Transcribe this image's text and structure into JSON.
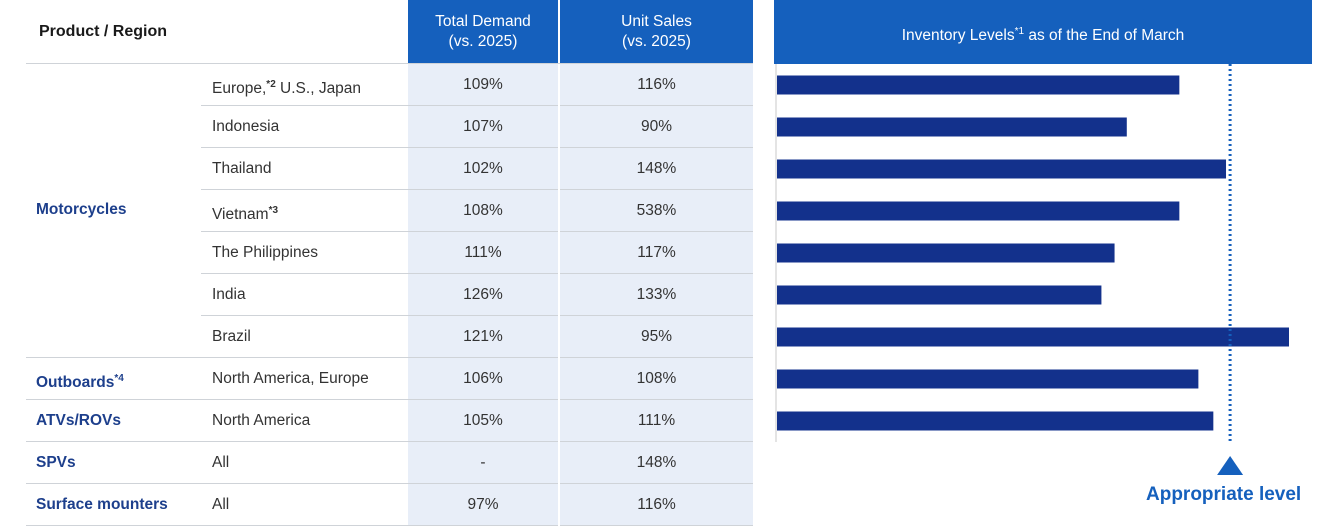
{
  "table": {
    "header": {
      "product_region": "Product / Region",
      "total_demand": [
        "Total Demand",
        "(vs. 2025)"
      ],
      "unit_sales": [
        "Unit Sales",
        "(vs. 2025)"
      ]
    },
    "rows": [
      {
        "category": "",
        "region": "Europe,",
        "region_sup": "*2",
        "region_rest": " U.S., Japan",
        "total_demand": "109%",
        "unit_sales": "116%"
      },
      {
        "category": "",
        "region": "Indonesia",
        "total_demand": "107%",
        "unit_sales": "90%"
      },
      {
        "category": "",
        "region": "Thailand",
        "total_demand": "102%",
        "unit_sales": "148%"
      },
      {
        "category": "",
        "region": "Vietnam",
        "region_sup": "*3",
        "total_demand": "108%",
        "unit_sales": "538%"
      },
      {
        "category": "",
        "region": "The Philippines",
        "total_demand": "111%",
        "unit_sales": "117%"
      },
      {
        "category": "",
        "region": "India",
        "total_demand": "126%",
        "unit_sales": "133%"
      },
      {
        "category": "",
        "region": "Brazil",
        "total_demand": "121%",
        "unit_sales": "95%"
      },
      {
        "category": "Outboards",
        "category_sup": "*4",
        "region": "North America, Europe",
        "total_demand": "106%",
        "unit_sales": "108%"
      },
      {
        "category": "ATVs/ROVs",
        "region": "North America",
        "total_demand": "105%",
        "unit_sales": "111%"
      },
      {
        "category": "SPVs",
        "region": "All",
        "total_demand": "-",
        "unit_sales": "148%"
      },
      {
        "category": "Surface mounters",
        "region": "All",
        "total_demand": "97%",
        "unit_sales": "116%"
      }
    ],
    "motorcycles_label": "Motorcycles"
  },
  "chart_data": {
    "type": "bar",
    "orientation": "horizontal",
    "title": "Inventory Levels",
    "title_sup": "*1",
    "title_rest": " as of the End of March",
    "categories": [
      "Europe, U.S., Japan",
      "Indonesia",
      "Thailand",
      "Vietnam",
      "The Philippines",
      "India",
      "Brazil",
      "Outboards North America, Europe",
      "ATVs/ROVs North America"
    ],
    "values": [
      0.888,
      0.772,
      0.991,
      0.888,
      0.745,
      0.716,
      1.13,
      0.93,
      0.963
    ],
    "xlim": [
      0,
      1.13
    ],
    "reference_value": 1.0,
    "reference_label": "Appropriate level",
    "bar_color": "#13318c",
    "reference_color": "#1560bd"
  }
}
